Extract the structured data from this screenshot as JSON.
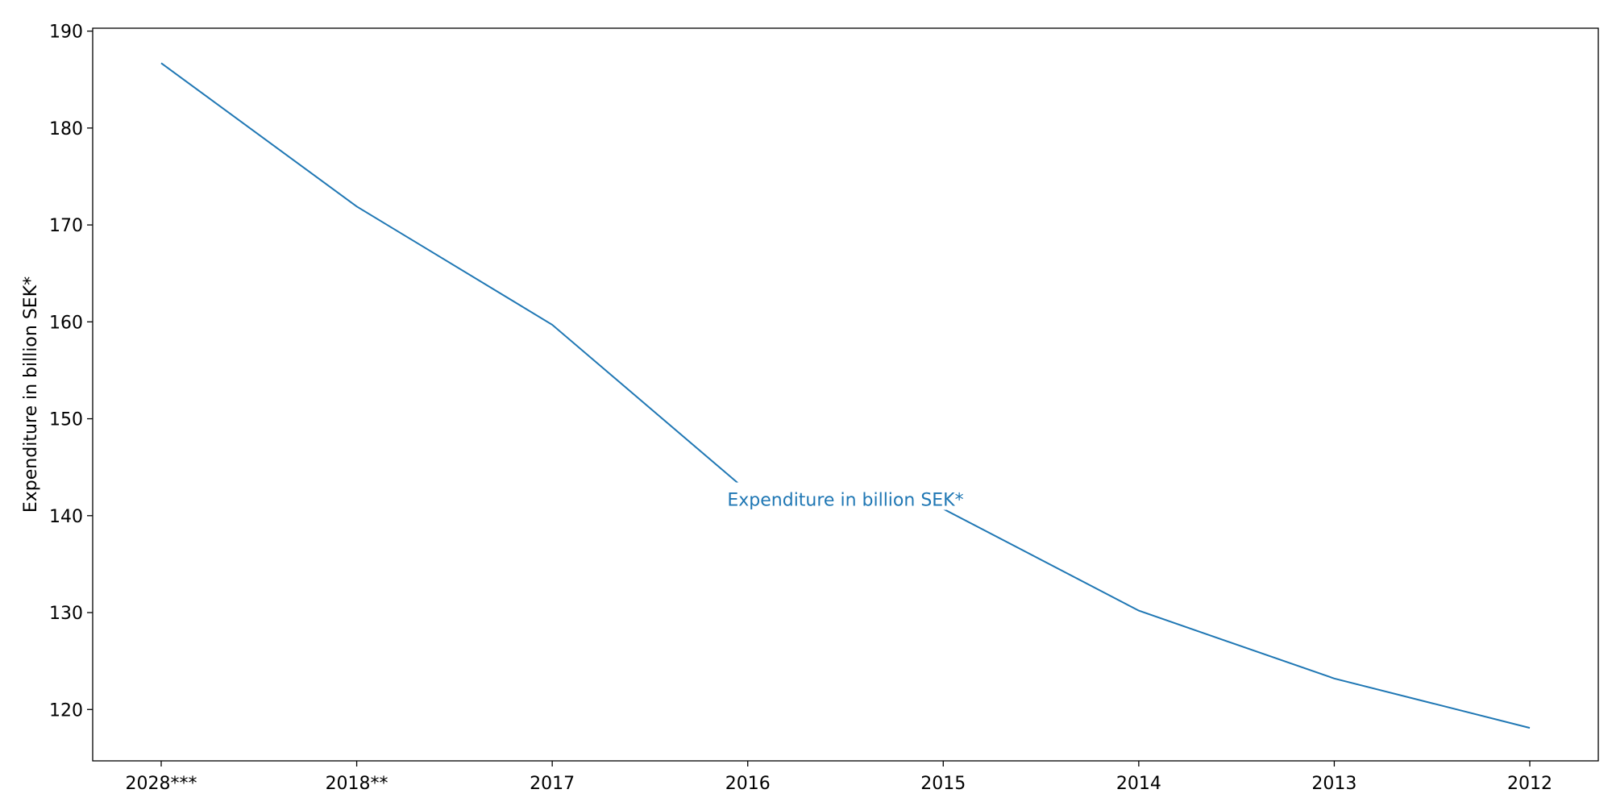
{
  "chart_data": {
    "type": "line",
    "categories": [
      "2028***",
      "2018**",
      "2017",
      "2016",
      "2015",
      "2014",
      "2013",
      "2012"
    ],
    "series": [
      {
        "name": "Expenditure in billion SEK*",
        "values": [
          186.7,
          171.9,
          159.7,
          142.5,
          140.7,
          130.2,
          123.2,
          118.1
        ],
        "color": "#1f77b4"
      }
    ],
    "title": "",
    "xlabel": "",
    "ylabel": "Expenditure in billion SEK*",
    "ylim": [
      114.7,
      190.3
    ],
    "yticks": [
      120,
      130,
      140,
      150,
      160,
      170,
      180,
      190
    ],
    "grid": false,
    "legend": "inline-label"
  }
}
